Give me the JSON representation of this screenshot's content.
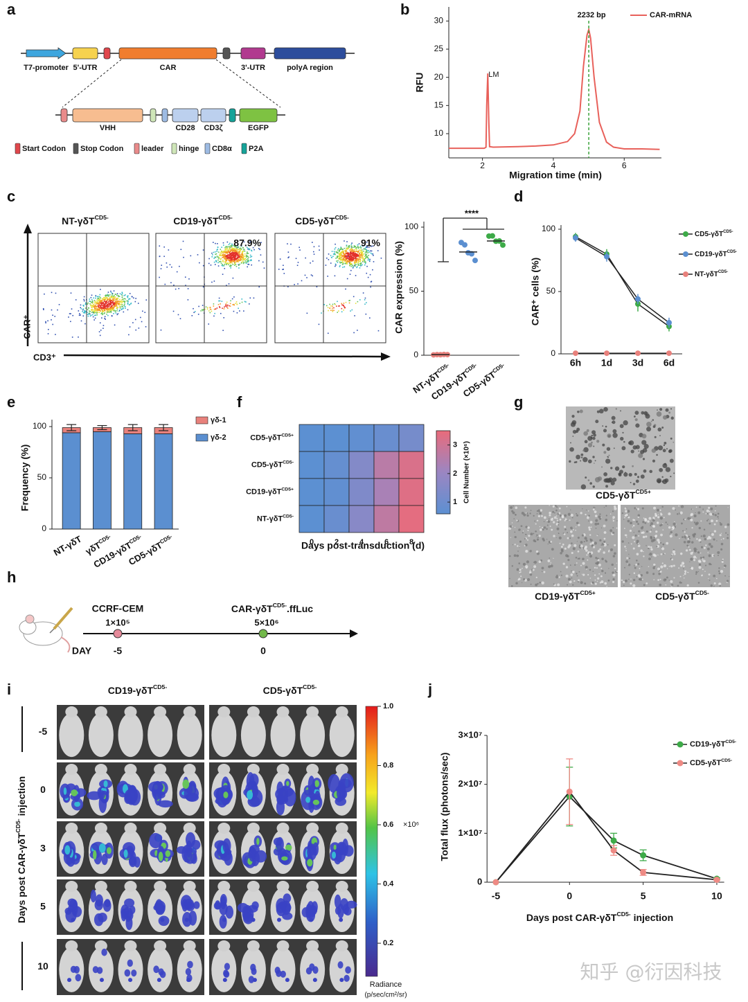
{
  "panel_labels": [
    "a",
    "b",
    "c",
    "d",
    "e",
    "f",
    "g",
    "h",
    "i",
    "j"
  ],
  "construct": {
    "top": [
      {
        "label": "T7-promoter",
        "color": "#3ea6de"
      },
      {
        "label": "5'-UTR",
        "color": "#f6d24e"
      },
      {
        "label": "CAR",
        "color": "#f07d2e"
      },
      {
        "label": "3'-UTR",
        "color": "#b13a8f"
      },
      {
        "label": "polyA region",
        "color": "#2d4d9c"
      }
    ],
    "bottom": [
      {
        "label": "VHH",
        "color": "#f7bd90"
      },
      {
        "label": "CD28",
        "color": "#bcd0ee"
      },
      {
        "label": "CD3ζ",
        "color": "#bcd0ee"
      },
      {
        "label": "EGFP",
        "color": "#7ec242"
      }
    ],
    "legend": [
      {
        "label": "Start Codon",
        "color": "#e0474c"
      },
      {
        "label": "Stop Codon",
        "color": "#555555"
      },
      {
        "label": "leader",
        "color": "#e98b8b"
      },
      {
        "label": "hinge",
        "color": "#cfe6b8"
      },
      {
        "label": "CD8α",
        "color": "#9dbbe3"
      },
      {
        "label": "P2A",
        "color": "#15a399"
      }
    ]
  },
  "flow": {
    "ylabel": "CAR⁺",
    "xlabel": "CD3⁺",
    "plots": [
      {
        "title": {
          "text": "NT-γδT",
          "sup": "CD5-"
        }
      },
      {
        "title": {
          "text": "CD19-γδT",
          "sup": "CD5-"
        },
        "percent": 87.9,
        "percent_label": "87.9%"
      },
      {
        "title": {
          "text": "CD5-γδT",
          "sup": "CD5-"
        },
        "percent": 91,
        "percent_label": "91%"
      }
    ]
  },
  "chart_data": [
    {
      "type": "line",
      "xlabel": "Migration time (min)",
      "ylabel": "RFU",
      "xlim": [
        1.05,
        7.05
      ],
      "ylim": [
        5.7,
        32.5
      ],
      "xticks": [
        2,
        4,
        6
      ],
      "yticks": [
        10,
        15,
        20,
        25,
        30
      ],
      "series": [
        {
          "name": "CAR-mRNA",
          "color": "#e8605a",
          "x": [
            1.05,
            2.05,
            2.1,
            2.12,
            2.15,
            2.18,
            2.2,
            2.3,
            3.0,
            3.5,
            4.0,
            4.4,
            4.6,
            4.75,
            4.85,
            4.95,
            5.0,
            5.05,
            5.15,
            5.3,
            5.5,
            5.7,
            6.0,
            6.5,
            7.0
          ],
          "values": [
            7.4,
            7.4,
            7.6,
            15,
            20.7,
            12,
            7.7,
            7.6,
            7.7,
            7.8,
            8.0,
            8.6,
            10,
            14,
            22,
            27.5,
            28.5,
            27,
            20,
            12,
            8.5,
            7.6,
            7.3,
            7.3,
            7.2
          ]
        }
      ],
      "annotation": "LM",
      "marker": {
        "label": "2232 bp",
        "x": 5.0,
        "color": "#3aa23a"
      }
    },
    {
      "type": "dot",
      "ylabel": "CAR expression (%)",
      "ylim": [
        0,
        100
      ],
      "yticks": [
        0,
        50,
        100
      ],
      "categories": [
        {
          "text": "NT-γδT",
          "sup": "CD5-"
        },
        {
          "text": "CD19-γδT",
          "sup": "CD5-"
        },
        {
          "text": "CD5-γδT",
          "sup": "CD5-"
        }
      ],
      "colors": [
        "#e8817c",
        "#5b8fd0",
        "#3daa48"
      ],
      "groups": [
        [
          0.3,
          0.5,
          0.4,
          0.6,
          0.5
        ],
        [
          88,
          84,
          80,
          77,
          74
        ],
        [
          93,
          91,
          89,
          87,
          86
        ]
      ],
      "means": [
        0.5,
        80.6,
        89.2
      ],
      "significance": "****"
    },
    {
      "type": "line",
      "ylabel": "CAR⁺ cells (%)",
      "categories": [
        "6h",
        "1d",
        "3d",
        "6d"
      ],
      "ylim": [
        0,
        100
      ],
      "yticks": [
        0,
        50,
        100
      ],
      "series": [
        {
          "name": {
            "text": "CD5-γδT",
            "sup": "CD5-"
          },
          "color": "#3daa48",
          "values": [
            94,
            80,
            40,
            22
          ],
          "errors": [
            3,
            4,
            6,
            4
          ]
        },
        {
          "name": {
            "text": "CD19-γδT",
            "sup": "CD5-"
          },
          "color": "#5b8fd0",
          "values": [
            93,
            78,
            44,
            25
          ],
          "errors": [
            3,
            4,
            4,
            4
          ]
        },
        {
          "name": {
            "text": "NT-γδT",
            "sup": "CD5-"
          },
          "color": "#e8817c",
          "values": [
            0.5,
            0.5,
            0.5,
            0.5
          ],
          "errors": [
            0.3,
            0.3,
            0.3,
            0.3
          ]
        }
      ]
    },
    {
      "type": "stacked_bar",
      "ylabel": "Frequency (%)",
      "ylim": [
        0,
        103
      ],
      "yticks": [
        0,
        50,
        100
      ],
      "categories": [
        "NT-γδT",
        {
          "text": "γδT",
          "sup": "CD5-"
        },
        {
          "text": "CD19-γδT",
          "sup": "CD5-"
        },
        {
          "text": "CD5-γδT",
          "sup": "CD5-"
        }
      ],
      "series": [
        {
          "name": "γδ-2",
          "color": "#5b8fd0",
          "values": [
            94,
            95,
            93,
            93
          ]
        },
        {
          "name": "γδ-1",
          "color": "#e8817c",
          "values": [
            5,
            4,
            6,
            6
          ],
          "errors": [
            3,
            2,
            3,
            3
          ]
        }
      ]
    },
    {
      "type": "heatmap",
      "xlabel": "Days post-transduction (d)",
      "colorbar_label": "Cell Number (×10⁶)",
      "x": [
        0,
        2,
        4,
        6,
        8
      ],
      "rows": [
        {
          "text": "CD5-γδT",
          "sup": "CD5+"
        },
        {
          "text": "CD5-γδT",
          "sup": "CD5-"
        },
        {
          "text": "CD19-γδT",
          "sup": "CD5+"
        },
        {
          "text": "NT-γδT",
          "sup": "CD5-"
        }
      ],
      "values": [
        [
          0.5,
          0.6,
          0.7,
          0.9,
          1.2
        ],
        [
          0.5,
          0.8,
          1.5,
          2.6,
          3.2
        ],
        [
          0.5,
          0.7,
          1.4,
          2.3,
          3.3
        ],
        [
          0.5,
          0.9,
          1.6,
          2.7,
          3.4
        ]
      ],
      "clim": [
        0.59,
        3.5
      ],
      "cticks": [
        1,
        2,
        3
      ],
      "colors": [
        "#5c90d2",
        "#9b86c2",
        "#e96b7b"
      ]
    },
    {
      "type": "line",
      "xlabel": {
        "text": "Days post CAR-γδT",
        "sup": "CD5-",
        "after": " injection"
      },
      "ylabel": "Total flux (photons/sec)",
      "x": [
        -5,
        0,
        3,
        5,
        10
      ],
      "xlim": [
        -5.6,
        10.5
      ],
      "xticks": [
        -5,
        0,
        5,
        10
      ],
      "ylim": [
        0,
        30000000
      ],
      "yticks": [
        0,
        {
          "value": 10000000,
          "label": "1×10⁷"
        },
        {
          "value": 20000000,
          "label": "2×10⁷"
        },
        {
          "value": 30000000,
          "label": "3×10⁷"
        }
      ],
      "series": [
        {
          "name": {
            "text": "CD19-γδT",
            "sup": "CD5-"
          },
          "color": "#3daa48",
          "values": [
            0,
            17500000,
            8500000,
            5500000,
            700000
          ],
          "errors": [
            0,
            6000000,
            1500000,
            1100000,
            200000
          ]
        },
        {
          "name": {
            "text": "CD5-γδT",
            "sup": "CD5-"
          },
          "color": "#ee8a84",
          "values": [
            0,
            18500000,
            6500000,
            2000000,
            500000
          ],
          "errors": [
            0,
            6700000,
            1000000,
            600000,
            100000
          ]
        }
      ]
    }
  ],
  "microscopy": {
    "labels": [
      {
        "text": "CD5-γδT",
        "sup": "CD5+"
      },
      {
        "text": "CD19-γδT",
        "sup": "CD5+"
      },
      {
        "text": "CD5-γδT",
        "sup": "CD5-"
      }
    ]
  },
  "timeline": {
    "axis_label": "DAY",
    "events": [
      {
        "label": "CCRF-CEM",
        "dose": "1×10⁵",
        "day": -5,
        "color": "#e58a9a"
      },
      {
        "label": {
          "text": "CAR-γδT",
          "sup": "CD5-",
          "after": ".ffLuc"
        },
        "dose": "5×10⁶",
        "day": 0,
        "color": "#72b84a"
      }
    ]
  },
  "imaging": {
    "columns": [
      {
        "text": "CD19-γδT",
        "sup": "CD5-"
      },
      {
        "text": "CD5-γδT",
        "sup": "CD5-"
      }
    ],
    "row_days": [
      -5,
      0,
      3,
      5,
      10
    ],
    "ylabel": {
      "text": "Days post CAR-γδT",
      "sup": "CD5-",
      "after": " injection"
    },
    "colorbar": {
      "lim": [
        0.088,
        1.0
      ],
      "ticks": [
        0.2,
        0.4,
        0.6,
        0.8,
        {
          "value": 1,
          "label": "1.0"
        }
      ],
      "unit": "×10⁶",
      "label": "Radiance",
      "sublabel": "(p/sec/cm²/sr)"
    }
  },
  "watermark": "知乎 @衍因科技"
}
